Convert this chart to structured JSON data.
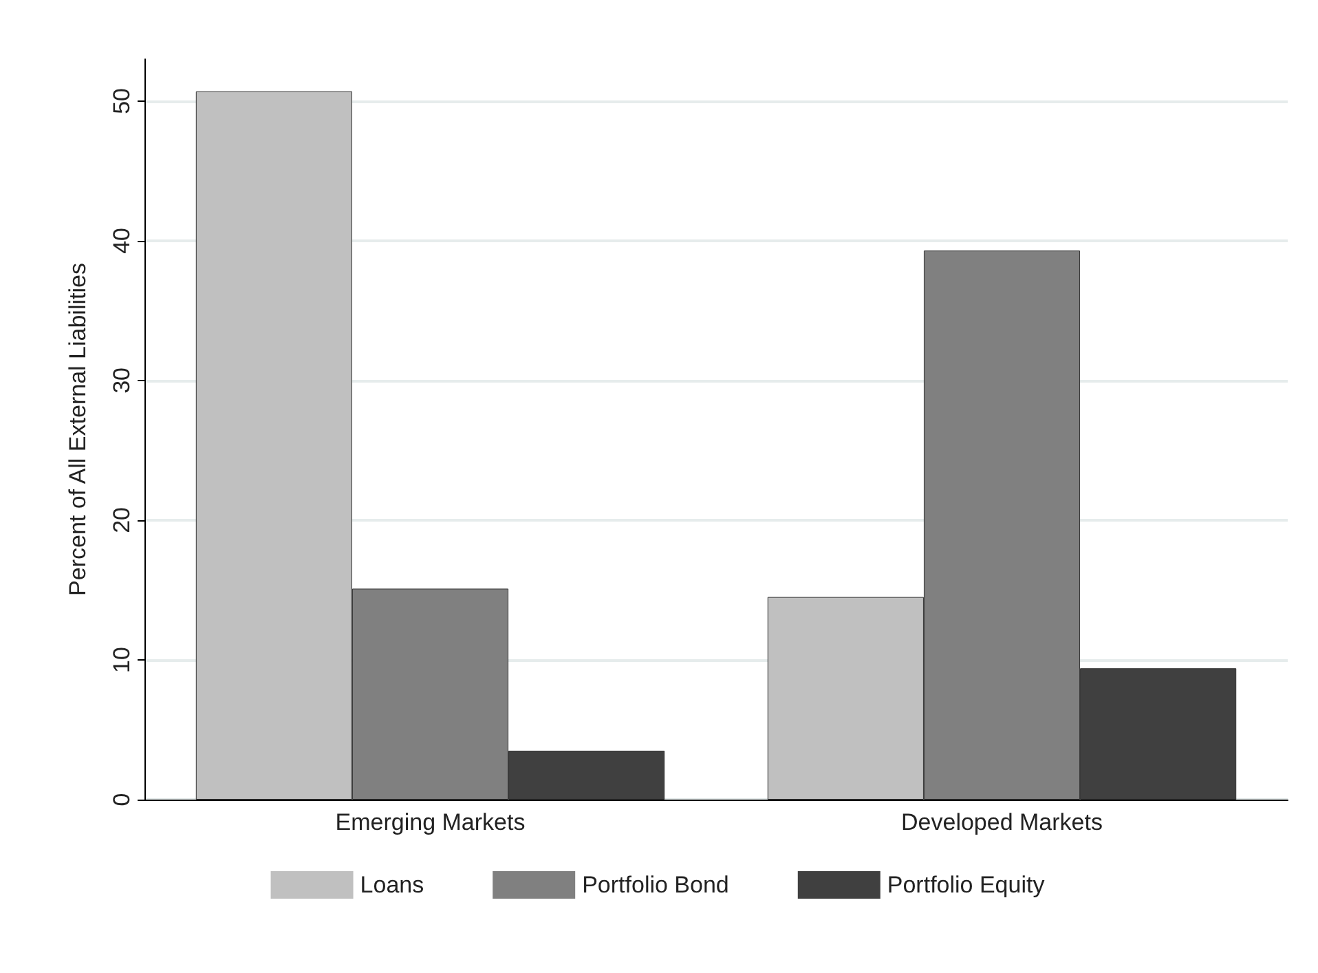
{
  "chart_data": {
    "type": "bar",
    "ylabel": "Percent of All External Liabilities",
    "categories": [
      "Emerging Markets",
      "Developed Markets"
    ],
    "series": [
      {
        "name": "Loans",
        "color": "#c0c0c0",
        "values": [
          50.7,
          14.5
        ]
      },
      {
        "name": "Portfolio Bond",
        "color": "#808080",
        "values": [
          15.1,
          39.3
        ]
      },
      {
        "name": "Portfolio Equity",
        "color": "#404040",
        "values": [
          3.5,
          9.4
        ]
      }
    ],
    "ylim": [
      0,
      53
    ],
    "yticks": [
      0,
      10,
      20,
      30,
      40,
      50
    ],
    "grid": "y",
    "legend": "bottom"
  }
}
